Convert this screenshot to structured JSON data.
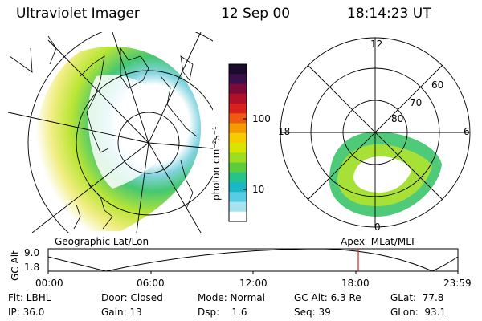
{
  "header": {
    "instrument": "Ultraviolet Imager",
    "date": "12 Sep 00",
    "time": "18:14:23 UT"
  },
  "colorbar": {
    "unit_label": "photon cm⁻²s⁻¹",
    "ticks": [
      "100",
      "10"
    ],
    "colors": [
      "#1a0b2e",
      "#3a0f4a",
      "#7a0a3a",
      "#b0102a",
      "#d8201c",
      "#ee5a10",
      "#f49a00",
      "#f6cc00",
      "#d6e400",
      "#a0dc20",
      "#5ccc3c",
      "#26c48a",
      "#18b8c8",
      "#58cce2",
      "#a8e2ee",
      "#ffffff"
    ]
  },
  "left_map": {
    "caption": "Geographic Lat/Lon"
  },
  "right_map": {
    "caption": "Apex  MLat/MLT",
    "mlt_labels": {
      "top": "12",
      "left": "18",
      "right": "6",
      "bottom": "0"
    },
    "lat_labels": [
      "60",
      "70",
      "80"
    ]
  },
  "altitude_plot": {
    "ylabel": "GC Alt",
    "yticks": [
      "9.0",
      "1.8"
    ],
    "xticks": [
      "00:00",
      "06:00",
      "12:00",
      "18:00",
      "23:59"
    ],
    "marker_color": "#d62020"
  },
  "footer": {
    "filter": "Flt: LBHL",
    "door": "Door: Closed",
    "mode": "Mode: Normal",
    "gc_alt": "GC Alt: 6.3 Re",
    "glat": "GLat:  77.8",
    "ip": "IP: 36.0",
    "gain": "Gain: 13",
    "dsp": "Dsp:    1.6",
    "seq": "Seq: 39",
    "glon": "GLon:  93.1"
  }
}
